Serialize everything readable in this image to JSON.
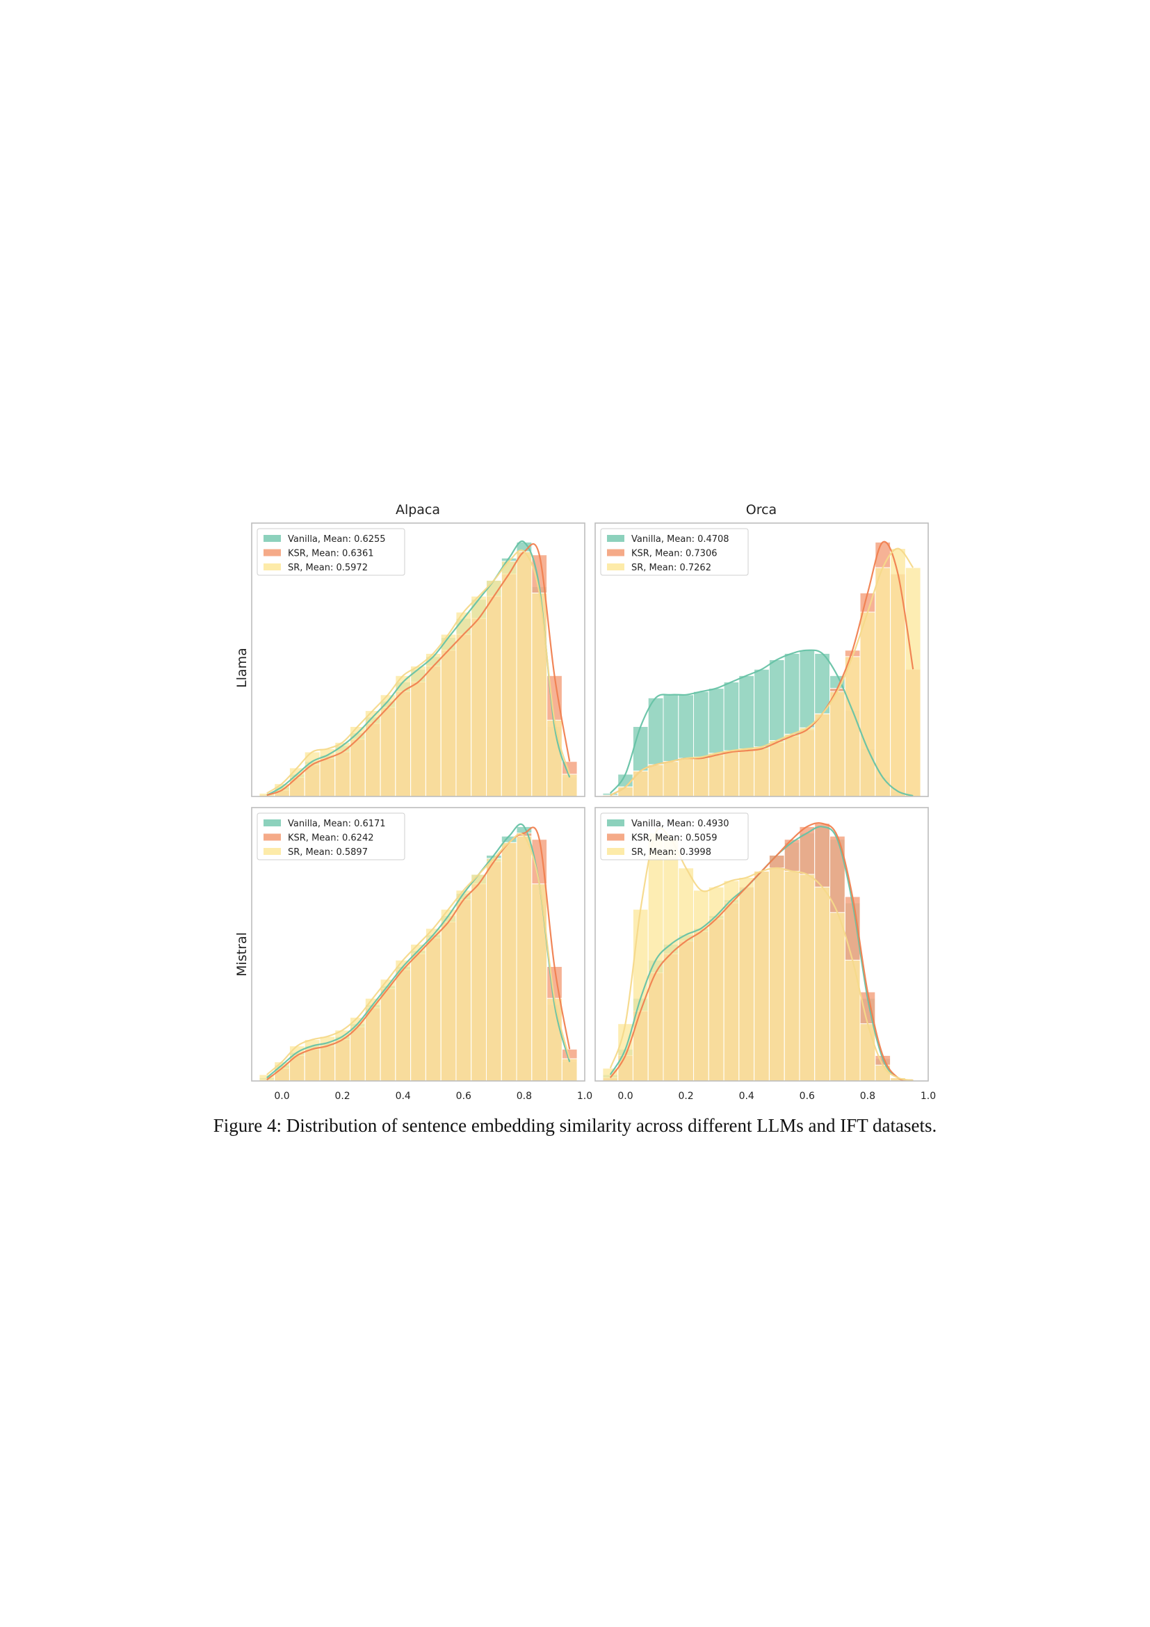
{
  "figure": {
    "caption": "Figure 4: Distribution of sentence embedding similarity across different LLMs and IFT datasets.",
    "columns": [
      "Alpaca",
      "Orca"
    ],
    "rows": [
      "Llama",
      "Mistral"
    ],
    "x_ticks": [
      "0.0",
      "0.2",
      "0.4",
      "0.6",
      "0.8",
      "1.0"
    ]
  },
  "colors": {
    "Vanilla": "#66c2a5",
    "KSR": "#f4a582",
    "KSR_line": "#f07f4f",
    "SR": "#fde9a0",
    "SR_line": "#f5d98a",
    "axis": "#bdbdbd"
  },
  "chart_data": [
    {
      "type": "histogram",
      "row": "Llama",
      "column": "Alpaca",
      "title": "Alpaca",
      "ylabel": "Llama",
      "xlabel": "",
      "xlim": [
        -0.1,
        1.0
      ],
      "ylim": [
        0,
        4.3
      ],
      "grid": false,
      "legend_position": "top-left",
      "series": [
        {
          "name": "Vanilla",
          "legend": "Vanilla, Mean: 0.6255",
          "x": [
            -0.05,
            0.0,
            0.05,
            0.1,
            0.15,
            0.2,
            0.25,
            0.3,
            0.35,
            0.4,
            0.45,
            0.5,
            0.55,
            0.6,
            0.65,
            0.7,
            0.75,
            0.8,
            0.85,
            0.9,
            0.95
          ],
          "density": [
            0.02,
            0.15,
            0.35,
            0.55,
            0.65,
            0.8,
            1.0,
            1.25,
            1.5,
            1.8,
            2.0,
            2.2,
            2.5,
            2.8,
            3.1,
            3.4,
            3.75,
            4.0,
            3.3,
            1.1,
            0.3
          ]
        },
        {
          "name": "KSR",
          "legend": "KSR, Mean: 0.6361",
          "x": [
            -0.05,
            0.0,
            0.05,
            0.1,
            0.15,
            0.2,
            0.25,
            0.3,
            0.35,
            0.4,
            0.45,
            0.5,
            0.55,
            0.6,
            0.65,
            0.7,
            0.75,
            0.8,
            0.85,
            0.9,
            0.95
          ],
          "density": [
            0.02,
            0.1,
            0.3,
            0.5,
            0.6,
            0.7,
            0.9,
            1.15,
            1.4,
            1.65,
            1.8,
            2.05,
            2.3,
            2.55,
            2.8,
            3.15,
            3.5,
            3.85,
            3.8,
            1.9,
            0.55
          ]
        },
        {
          "name": "SR",
          "legend": "SR, Mean: 0.5972",
          "x": [
            -0.05,
            0.0,
            0.05,
            0.1,
            0.15,
            0.2,
            0.25,
            0.3,
            0.35,
            0.4,
            0.45,
            0.5,
            0.55,
            0.6,
            0.65,
            0.7,
            0.75,
            0.8,
            0.85,
            0.9,
            0.95
          ],
          "density": [
            0.05,
            0.2,
            0.45,
            0.7,
            0.75,
            0.85,
            1.1,
            1.35,
            1.6,
            1.9,
            2.05,
            2.25,
            2.55,
            2.9,
            3.15,
            3.4,
            3.7,
            3.85,
            3.2,
            1.2,
            0.35
          ]
        }
      ]
    },
    {
      "type": "histogram",
      "row": "Llama",
      "column": "Orca",
      "title": "Orca",
      "ylabel": "",
      "xlabel": "",
      "xlim": [
        -0.1,
        1.0
      ],
      "ylim": [
        0,
        4.3
      ],
      "grid": false,
      "legend_position": "top-left",
      "series": [
        {
          "name": "Vanilla",
          "legend": "Vanilla, Mean: 0.4708",
          "x": [
            -0.05,
            0.0,
            0.05,
            0.1,
            0.15,
            0.2,
            0.25,
            0.3,
            0.35,
            0.4,
            0.45,
            0.5,
            0.55,
            0.6,
            0.65,
            0.7,
            0.75,
            0.8,
            0.85,
            0.9,
            0.95
          ],
          "density": [
            0.05,
            0.35,
            1.1,
            1.55,
            1.6,
            1.6,
            1.65,
            1.7,
            1.8,
            1.9,
            2.0,
            2.15,
            2.25,
            2.3,
            2.25,
            1.9,
            1.35,
            0.75,
            0.3,
            0.08,
            0.01
          ]
        },
        {
          "name": "KSR",
          "legend": "KSR, Mean: 0.7306",
          "x": [
            -0.05,
            0.0,
            0.05,
            0.1,
            0.15,
            0.2,
            0.25,
            0.3,
            0.35,
            0.4,
            0.45,
            0.5,
            0.55,
            0.6,
            0.65,
            0.7,
            0.75,
            0.8,
            0.85,
            0.9,
            0.95
          ],
          "density": [
            0.02,
            0.15,
            0.4,
            0.5,
            0.55,
            0.6,
            0.6,
            0.65,
            0.7,
            0.72,
            0.75,
            0.85,
            0.95,
            1.05,
            1.3,
            1.7,
            2.3,
            3.2,
            4.0,
            3.5,
            2.0
          ]
        },
        {
          "name": "SR",
          "legend": "SR, Mean: 0.7262",
          "x": [
            -0.05,
            0.0,
            0.05,
            0.1,
            0.15,
            0.2,
            0.25,
            0.3,
            0.35,
            0.4,
            0.45,
            0.5,
            0.55,
            0.6,
            0.65,
            0.7,
            0.75,
            0.8,
            0.85,
            0.9,
            0.95
          ],
          "density": [
            0.02,
            0.15,
            0.4,
            0.5,
            0.55,
            0.6,
            0.62,
            0.68,
            0.72,
            0.75,
            0.78,
            0.88,
            0.98,
            1.08,
            1.3,
            1.65,
            2.2,
            2.9,
            3.6,
            3.9,
            3.6
          ]
        }
      ]
    },
    {
      "type": "histogram",
      "row": "Mistral",
      "column": "Alpaca",
      "title": "",
      "ylabel": "Mistral",
      "xlabel": "",
      "xlim": [
        -0.1,
        1.0
      ],
      "ylim": [
        0,
        4.3
      ],
      "grid": false,
      "legend_position": "top-left",
      "series": [
        {
          "name": "Vanilla",
          "legend": "Vanilla, Mean: 0.6171",
          "x": [
            -0.05,
            0.0,
            0.05,
            0.1,
            0.15,
            0.2,
            0.25,
            0.3,
            0.35,
            0.4,
            0.45,
            0.5,
            0.55,
            0.6,
            0.65,
            0.7,
            0.75,
            0.8,
            0.85,
            0.9,
            0.95
          ],
          "density": [
            0.05,
            0.25,
            0.45,
            0.55,
            0.6,
            0.7,
            0.9,
            1.2,
            1.5,
            1.8,
            2.05,
            2.3,
            2.6,
            2.95,
            3.25,
            3.55,
            3.85,
            4.0,
            3.1,
            1.2,
            0.3
          ]
        },
        {
          "name": "KSR",
          "legend": "KSR, Mean: 0.6242",
          "x": [
            -0.05,
            0.0,
            0.05,
            0.1,
            0.15,
            0.2,
            0.25,
            0.3,
            0.35,
            0.4,
            0.45,
            0.5,
            0.55,
            0.6,
            0.65,
            0.7,
            0.75,
            0.8,
            0.85,
            0.9,
            0.95
          ],
          "density": [
            0.02,
            0.2,
            0.4,
            0.5,
            0.55,
            0.65,
            0.85,
            1.15,
            1.45,
            1.75,
            2.0,
            2.25,
            2.5,
            2.85,
            3.1,
            3.45,
            3.75,
            3.9,
            3.8,
            1.8,
            0.5
          ]
        },
        {
          "name": "SR",
          "legend": "SR, Mean: 0.5897",
          "x": [
            -0.05,
            0.0,
            0.05,
            0.1,
            0.15,
            0.2,
            0.25,
            0.3,
            0.35,
            0.4,
            0.45,
            0.5,
            0.55,
            0.6,
            0.65,
            0.7,
            0.75,
            0.8,
            0.85,
            0.9,
            0.95
          ],
          "density": [
            0.1,
            0.3,
            0.55,
            0.65,
            0.7,
            0.8,
            1.0,
            1.3,
            1.6,
            1.9,
            2.15,
            2.4,
            2.7,
            3.0,
            3.25,
            3.5,
            3.75,
            3.85,
            3.1,
            1.3,
            0.35
          ]
        }
      ]
    },
    {
      "type": "histogram",
      "row": "Mistral",
      "column": "Orca",
      "title": "",
      "ylabel": "",
      "xlabel": "",
      "xlim": [
        -0.1,
        1.0
      ],
      "ylim": [
        0,
        4.3
      ],
      "grid": false,
      "legend_position": "top-left",
      "series": [
        {
          "name": "Vanilla",
          "legend": "Vanilla, Mean: 0.4930",
          "x": [
            -0.05,
            0.0,
            0.05,
            0.1,
            0.15,
            0.2,
            0.25,
            0.3,
            0.35,
            0.4,
            0.45,
            0.5,
            0.55,
            0.6,
            0.65,
            0.7,
            0.75,
            0.8,
            0.85,
            0.9,
            0.95
          ],
          "density": [
            0.1,
            0.5,
            1.3,
            1.9,
            2.15,
            2.3,
            2.4,
            2.6,
            2.85,
            3.05,
            3.3,
            3.55,
            3.75,
            3.9,
            4.0,
            3.8,
            2.8,
            1.3,
            0.35,
            0.05,
            0.01
          ]
        },
        {
          "name": "KSR",
          "legend": "KSR, Mean: 0.5059",
          "x": [
            -0.05,
            0.0,
            0.05,
            0.1,
            0.15,
            0.2,
            0.25,
            0.3,
            0.35,
            0.4,
            0.45,
            0.5,
            0.55,
            0.6,
            0.65,
            0.7,
            0.75,
            0.8,
            0.85,
            0.9,
            0.95
          ],
          "density": [
            0.05,
            0.4,
            1.1,
            1.7,
            2.0,
            2.2,
            2.35,
            2.55,
            2.8,
            3.05,
            3.3,
            3.55,
            3.8,
            4.0,
            4.05,
            3.85,
            2.9,
            1.4,
            0.4,
            0.05,
            0.01
          ]
        },
        {
          "name": "SR",
          "legend": "SR, Mean: 0.3998",
          "x": [
            -0.05,
            0.0,
            0.05,
            0.1,
            0.15,
            0.2,
            0.25,
            0.3,
            0.35,
            0.4,
            0.45,
            0.5,
            0.55,
            0.6,
            0.65,
            0.7,
            0.75,
            0.8,
            0.85,
            0.9,
            0.95
          ],
          "density": [
            0.2,
            0.9,
            2.7,
            3.9,
            3.8,
            3.35,
            3.0,
            3.05,
            3.15,
            3.2,
            3.3,
            3.35,
            3.3,
            3.25,
            3.05,
            2.65,
            1.9,
            0.9,
            0.25,
            0.05,
            0.01
          ]
        }
      ]
    }
  ]
}
